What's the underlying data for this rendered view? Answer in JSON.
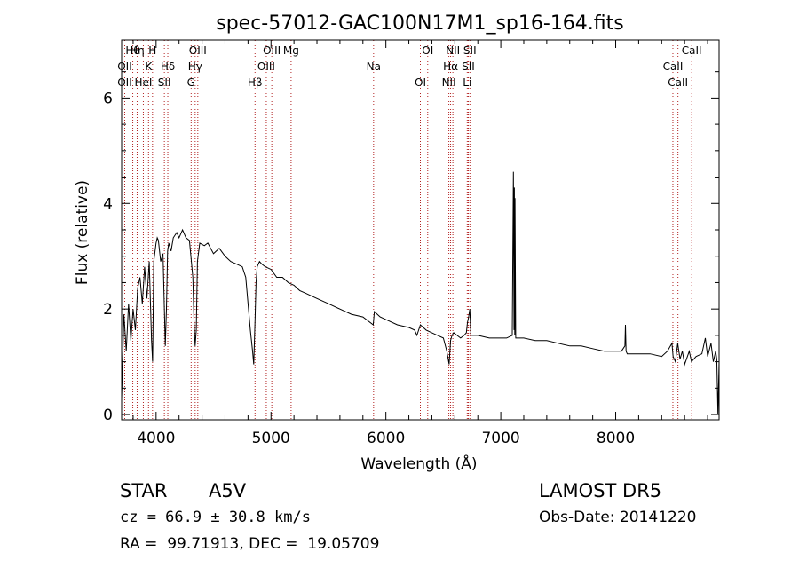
{
  "chart_data": {
    "type": "line",
    "title": "spec-57012-GAC100N17M1_sp16-164.fits",
    "xlabel": "Wavelength (Å)",
    "ylabel": "Flux (relative)",
    "xlim": [
      3700,
      8900
    ],
    "ylim": [
      -0.1,
      7.1
    ],
    "xticks": [
      4000,
      5000,
      6000,
      7000,
      8000
    ],
    "yticks": [
      0,
      2,
      4,
      6
    ],
    "grid": false,
    "series": [
      {
        "color": "#000000",
        "x": [
          3700,
          3720,
          3740,
          3760,
          3780,
          3800,
          3820,
          3840,
          3860,
          3880,
          3900,
          3920,
          3940,
          3960,
          3970,
          3980,
          4000,
          4010,
          4020,
          4040,
          4060,
          4080,
          4090,
          4100,
          4110,
          4130,
          4150,
          4180,
          4200,
          4230,
          4260,
          4290,
          4320,
          4330,
          4340,
          4350,
          4360,
          4380,
          4420,
          4450,
          4500,
          4550,
          4600,
          4650,
          4700,
          4750,
          4780,
          4800,
          4820,
          4840,
          4850,
          4861,
          4870,
          4880,
          4900,
          4920,
          4950,
          5000,
          5050,
          5100,
          5150,
          5200,
          5250,
          5300,
          5400,
          5500,
          5600,
          5700,
          5800,
          5890,
          5900,
          5950,
          6000,
          6100,
          6200,
          6250,
          6270,
          6300,
          6350,
          6400,
          6450,
          6500,
          6530,
          6550,
          6563,
          6575,
          6590,
          6620,
          6650,
          6680,
          6700,
          6710,
          6720,
          6730,
          6740,
          6800,
          6900,
          7000,
          7050,
          7100,
          7110,
          7115,
          7118,
          7121,
          7124,
          7130,
          7200,
          7300,
          7400,
          7500,
          7600,
          7700,
          7800,
          7900,
          8000,
          8050,
          8080,
          8085,
          8090,
          8100,
          8200,
          8300,
          8400,
          8450,
          8490,
          8500,
          8520,
          8540,
          8560,
          8580,
          8600,
          8640,
          8660,
          8700,
          8750,
          8780,
          8800,
          8830,
          8850,
          8870,
          8880,
          8890,
          8900
        ],
        "y": [
          0.3,
          1.9,
          1.2,
          2.1,
          1.4,
          2.0,
          1.6,
          2.4,
          2.6,
          2.1,
          2.8,
          2.2,
          2.9,
          1.4,
          1.0,
          2.9,
          3.25,
          3.35,
          3.3,
          2.9,
          3.05,
          1.3,
          2.0,
          3.1,
          3.25,
          3.1,
          3.35,
          3.45,
          3.35,
          3.5,
          3.35,
          3.3,
          2.6,
          1.8,
          1.3,
          1.6,
          2.9,
          3.25,
          3.2,
          3.25,
          3.05,
          3.15,
          3.0,
          2.9,
          2.85,
          2.8,
          2.6,
          2.1,
          1.6,
          1.2,
          0.95,
          1.8,
          2.5,
          2.8,
          2.9,
          2.85,
          2.8,
          2.75,
          2.6,
          2.6,
          2.5,
          2.45,
          2.35,
          2.3,
          2.2,
          2.1,
          2.0,
          1.9,
          1.85,
          1.7,
          1.95,
          1.85,
          1.8,
          1.7,
          1.65,
          1.6,
          1.5,
          1.7,
          1.6,
          1.55,
          1.5,
          1.45,
          1.2,
          0.95,
          1.4,
          1.5,
          1.55,
          1.5,
          1.45,
          1.5,
          1.55,
          1.75,
          1.85,
          2.0,
          1.5,
          1.5,
          1.45,
          1.45,
          1.45,
          1.5,
          4.6,
          1.6,
          4.3,
          1.5,
          4.1,
          1.45,
          1.45,
          1.4,
          1.4,
          1.35,
          1.3,
          1.3,
          1.25,
          1.2,
          1.2,
          1.2,
          1.3,
          1.7,
          1.2,
          1.15,
          1.15,
          1.15,
          1.1,
          1.2,
          1.35,
          1.1,
          1.0,
          1.35,
          1.05,
          1.2,
          0.95,
          1.2,
          1.0,
          1.1,
          1.15,
          1.45,
          1.1,
          1.35,
          1.0,
          1.2,
          1.05,
          0.0,
          1.0
        ]
      }
    ],
    "lines": [
      {
        "label": "Hθ",
        "wave": 3797
      },
      {
        "label": "OII",
        "wave": 3727
      },
      {
        "label": "OII",
        "wave": 3727
      },
      {
        "label": "Hη",
        "wave": 3835
      },
      {
        "label": "K",
        "wave": 3934
      },
      {
        "label": "HeI",
        "wave": 3889
      },
      {
        "label": "H",
        "wave": 3969
      },
      {
        "label": "Hδ",
        "wave": 4102
      },
      {
        "label": "SII",
        "wave": 4072
      },
      {
        "label": "OIII",
        "wave": 4363
      },
      {
        "label": "Hγ",
        "wave": 4340
      },
      {
        "label": "G",
        "wave": 4305
      },
      {
        "label": "OIII",
        "wave": 5007
      },
      {
        "label": "OIII",
        "wave": 4959
      },
      {
        "label": "Hβ",
        "wave": 4861
      },
      {
        "label": "Mg",
        "wave": 5175
      },
      {
        "label": "Na",
        "wave": 5893
      },
      {
        "label": "OI",
        "wave": 6300
      },
      {
        "label": "OI",
        "wave": 6364
      },
      {
        "label": "Hα",
        "wave": 6563
      },
      {
        "label": "NII",
        "wave": 6548
      },
      {
        "label": "NII",
        "wave": 6583
      },
      {
        "label": "SII",
        "wave": 6717
      },
      {
        "label": "Li",
        "wave": 6708
      },
      {
        "label": "SII",
        "wave": 6731
      },
      {
        "label": "CaII",
        "wave": 8498
      },
      {
        "label": "CaII",
        "wave": 8542
      },
      {
        "label": "CaII",
        "wave": 8662
      }
    ]
  },
  "info": {
    "object_class": "STAR",
    "subclass": "A5V",
    "survey": "LAMOST DR5",
    "cz": "cz = 66.9 ± 30.8 km/s",
    "obs_date": "Obs-Date: 20141220",
    "radec": "RA =  99.71913, DEC =  19.05709"
  }
}
